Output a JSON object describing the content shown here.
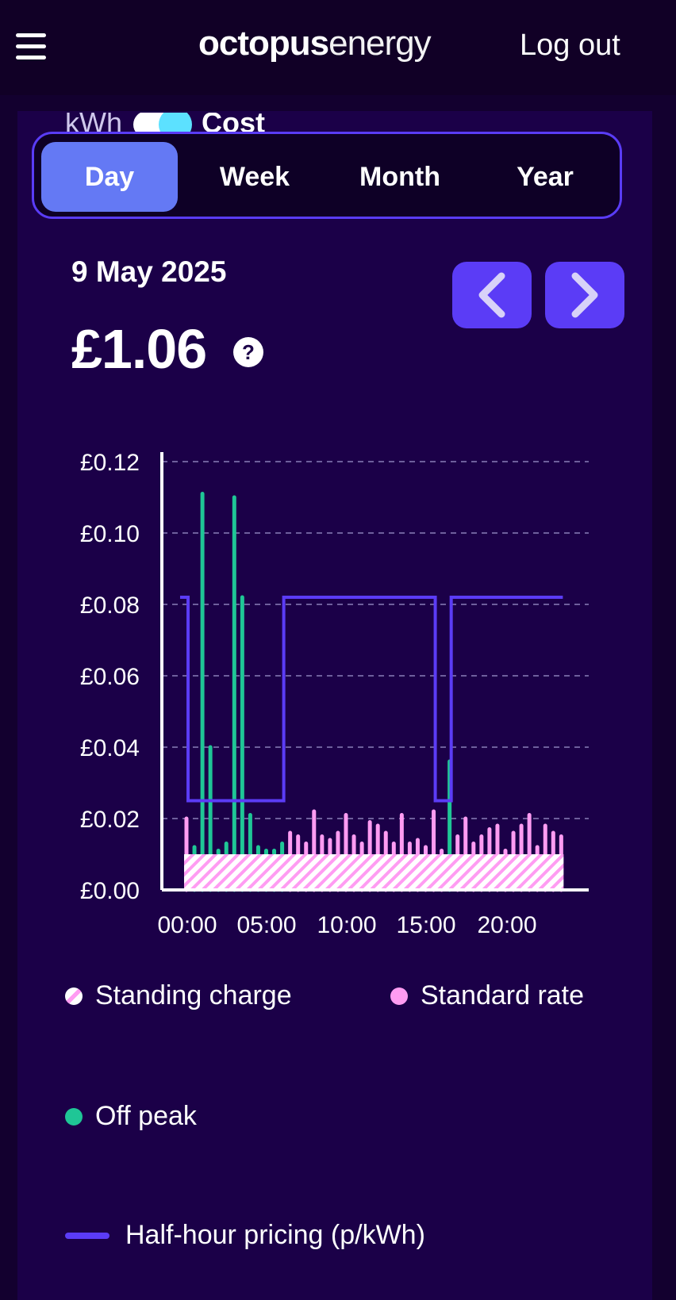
{
  "header": {
    "logo_bold": "octopus",
    "logo_light": "energy",
    "logout_label": "Log out"
  },
  "toggle": {
    "left_label": "kWh",
    "right_label": "Cost"
  },
  "tabs": [
    {
      "label": "Day",
      "active": true
    },
    {
      "label": "Week",
      "active": false
    },
    {
      "label": "Month",
      "active": false
    },
    {
      "label": "Year",
      "active": false
    }
  ],
  "summary": {
    "date": "9 May 2025",
    "amount": "£1.06",
    "help_icon": "?"
  },
  "nav": {
    "prev_icon": "chevron-left-icon",
    "next_icon": "chevron-right-icon"
  },
  "chart_data": {
    "type": "bar",
    "ylim": [
      0,
      0.12
    ],
    "yticks": [
      "£0.00",
      "£0.02",
      "£0.04",
      "£0.06",
      "£0.08",
      "£0.10",
      "£0.12"
    ],
    "xticks": [
      "00:00",
      "05:00",
      "10:00",
      "15:00",
      "20:00"
    ],
    "standing_charge_per_slot": 0.01,
    "bar_values": [
      0.02,
      0.012,
      0.111,
      0.04,
      0.011,
      0.013,
      0.11,
      0.082,
      0.021,
      0.012,
      0.011,
      0.011,
      0.013,
      0.016,
      0.015,
      0.013,
      0.022,
      0.015,
      0.014,
      0.016,
      0.021,
      0.015,
      0.013,
      0.019,
      0.018,
      0.016,
      0.013,
      0.021,
      0.013,
      0.014,
      0.012,
      0.022,
      0.011,
      0.036,
      0.015,
      0.02,
      0.013,
      0.015,
      0.017,
      0.018,
      0.011,
      0.016,
      0.018,
      0.021,
      0.012,
      0.018,
      0.016,
      0.015
    ],
    "offpeak_slots": [
      1,
      2,
      3,
      4,
      5,
      6,
      7,
      8,
      9,
      10,
      11,
      12,
      33
    ],
    "pricing_series": {
      "name": "Half-hour pricing (p/kWh)",
      "values": [
        0.082,
        0.025,
        0.025,
        0.025,
        0.025,
        0.025,
        0.025,
        0.025,
        0.025,
        0.025,
        0.025,
        0.025,
        0.025,
        0.082,
        0.082,
        0.082,
        0.082,
        0.082,
        0.082,
        0.082,
        0.082,
        0.082,
        0.082,
        0.082,
        0.082,
        0.082,
        0.082,
        0.082,
        0.082,
        0.082,
        0.082,
        0.082,
        0.025,
        0.025,
        0.082,
        0.082,
        0.082,
        0.082,
        0.082,
        0.082,
        0.082,
        0.082,
        0.082,
        0.082,
        0.082,
        0.082,
        0.082,
        0.082
      ]
    },
    "colors": {
      "standard": "#ff9cf2",
      "offpeak": "#1fc696",
      "pricing": "#5b3cf6",
      "axis": "#ffffff",
      "grid": "#8a7fb8"
    }
  },
  "legend": [
    {
      "label": "Standing charge"
    },
    {
      "label": "Standard rate"
    },
    {
      "label": "Off peak"
    },
    {
      "label": "Half-hour pricing (p/kWh)"
    }
  ]
}
